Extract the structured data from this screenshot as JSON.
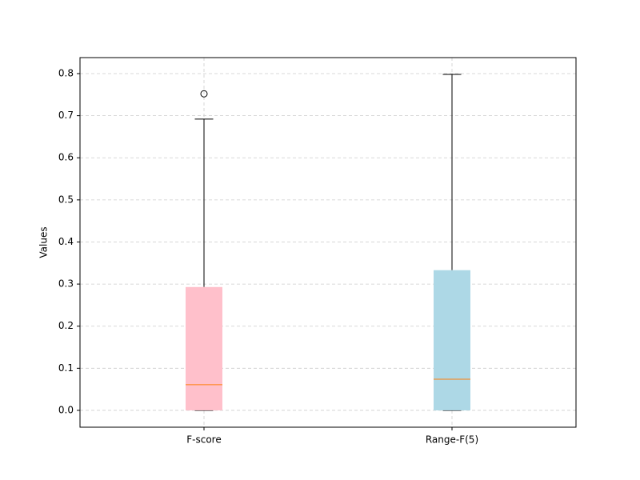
{
  "chart_data": {
    "type": "box",
    "ylabel": "Values",
    "categories": [
      "F-score",
      "Range-F(5)"
    ],
    "boxes": [
      {
        "color": "#ffc0cb",
        "whislo": 0,
        "q1": 0,
        "med": 0.061,
        "q3": 0.293,
        "whishi": 0.692,
        "fliers": [
          0.752
        ]
      },
      {
        "color": "#add8e6",
        "whislo": 0,
        "q1": 0,
        "med": 0.074,
        "q3": 0.333,
        "whishi": 0.798,
        "fliers": []
      }
    ],
    "median_color": "#ff7f0e",
    "ylim": [
      -0.04,
      0.838
    ],
    "yticks": [
      {
        "value": 0,
        "label": "0.0"
      },
      0.1,
      0.2,
      0.3,
      0.4,
      0.5,
      0.6,
      0.7,
      0.8
    ],
    "grid": true
  }
}
